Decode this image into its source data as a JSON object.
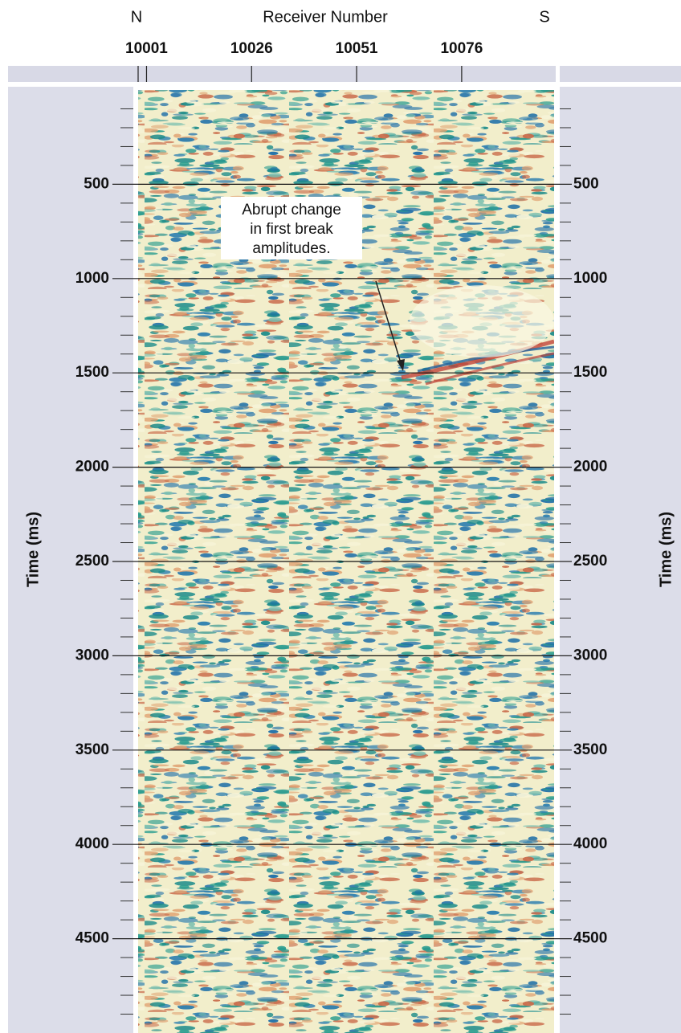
{
  "chart_data": {
    "type": "seismic",
    "xlabel": "Receiver Number",
    "left_label": "N",
    "right_label": "S",
    "xticks": [
      10001,
      10026,
      10051,
      10076
    ],
    "xlim": [
      9999,
      10098
    ],
    "ylabel": "Time (ms)",
    "y2label": "Time (ms)",
    "ylim": [
      0,
      5000
    ],
    "y_reversed": true,
    "yticks": [
      500,
      1000,
      1500,
      2000,
      2500,
      3000,
      3500,
      4000,
      4500
    ],
    "yminorticks": [
      100,
      200,
      300,
      400,
      600,
      700,
      800,
      900,
      1100,
      1200,
      1300,
      1400,
      1600,
      1700,
      1800,
      1900,
      2100,
      2200,
      2300,
      2400,
      2600,
      2700,
      2800,
      2900,
      3100,
      3200,
      3300,
      3400,
      3600,
      3700,
      3800,
      3900,
      4100,
      4200,
      4300,
      4400,
      4600,
      4700,
      4800,
      4900
    ],
    "grid": true,
    "annotation": [
      "Abrupt change",
      "in first break",
      "amplitudes."
    ]
  }
}
